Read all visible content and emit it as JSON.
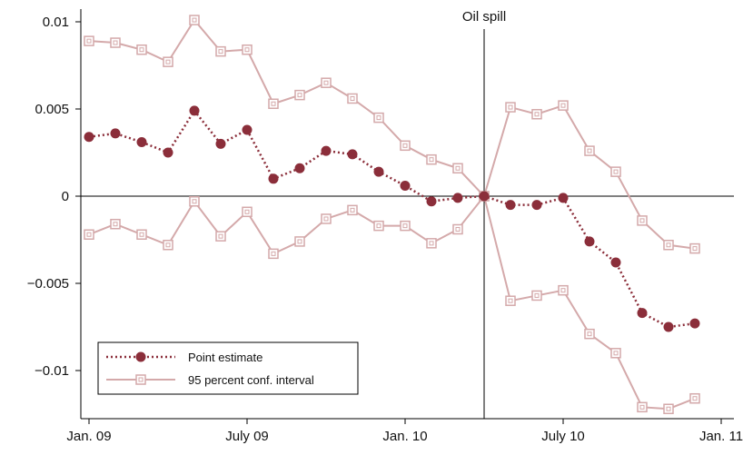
{
  "chart_data": {
    "type": "line",
    "title": "",
    "xlabel": "",
    "ylabel": "",
    "x_tick_labels": [
      "Jan. 09",
      "July 09",
      "Jan. 10",
      "July 10",
      "Jan. 11"
    ],
    "y_tick_labels": [
      "−0.01",
      "−0.005",
      "0",
      "0.005",
      "0.01"
    ],
    "ylim": [
      -0.0125,
      0.0105
    ],
    "grid": false,
    "legend_position": "bottom-left",
    "event_annotation": {
      "label": "Oil spill",
      "x_index": 15
    },
    "months": 24,
    "series": [
      {
        "name": "Point estimate",
        "style": "dotted-line-filled-circle",
        "color": "#8b2e3a",
        "values": [
          0.0034,
          0.0036,
          0.0031,
          0.0025,
          0.0049,
          0.003,
          0.0038,
          0.001,
          0.0016,
          0.0026,
          0.0024,
          0.0014,
          0.0006,
          -0.0003,
          -0.0001,
          0.0,
          -0.0005,
          -0.0005,
          -0.0001,
          -0.0026,
          -0.0038,
          -0.0067,
          -0.0075,
          -0.0073
        ]
      },
      {
        "name": "95 percent conf. interval",
        "style": "solid-line-hollow-square",
        "color": "#d4a9aa",
        "bounds": {
          "upper": [
            0.0089,
            0.0088,
            0.0084,
            0.0077,
            0.0101,
            0.0083,
            0.0084,
            0.0053,
            0.0058,
            0.0065,
            0.0056,
            0.0045,
            0.0029,
            0.0021,
            0.0016,
            0.0,
            0.0051,
            0.0047,
            0.0052,
            0.0026,
            0.0014,
            -0.0014,
            -0.0028,
            -0.003
          ],
          "lower": [
            -0.0022,
            -0.0016,
            -0.0022,
            -0.0028,
            -0.0003,
            -0.0023,
            -0.0009,
            -0.0033,
            -0.0026,
            -0.0013,
            -0.0008,
            -0.0017,
            -0.0017,
            -0.0027,
            -0.0019,
            0.0,
            -0.006,
            -0.0057,
            -0.0054,
            -0.0079,
            -0.009,
            -0.0121,
            -0.0122,
            -0.0116
          ]
        }
      }
    ]
  }
}
